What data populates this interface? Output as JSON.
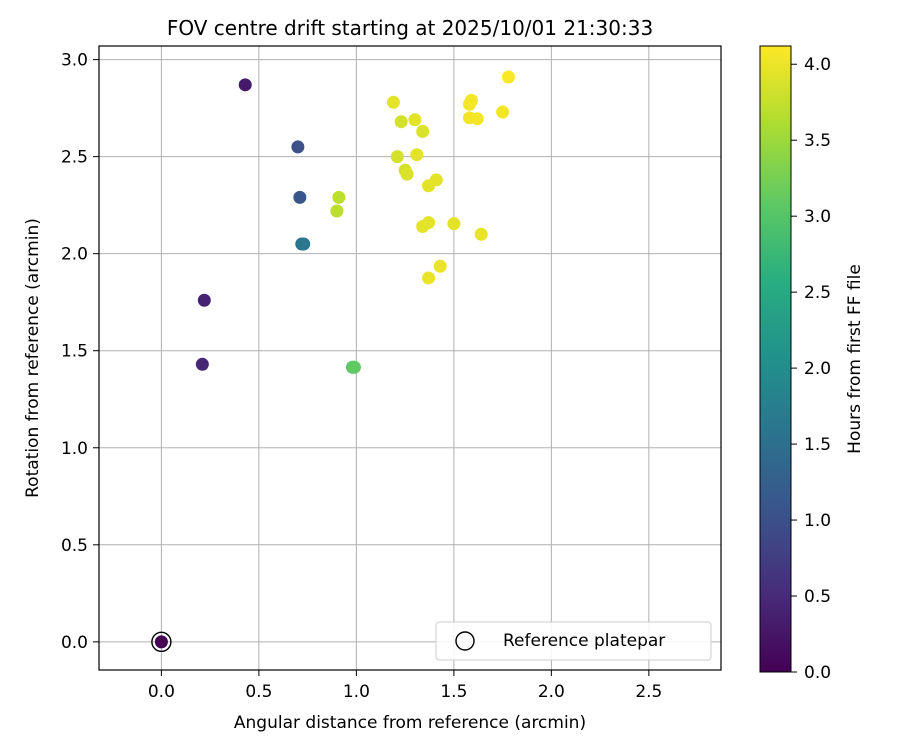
{
  "chart_data": {
    "type": "scatter",
    "title": "FOV centre drift starting at 2025/10/01 21:30:33",
    "xlabel": "Angular distance from reference (arcmin)",
    "ylabel": "Rotation from reference (arcmin)",
    "xlim": [
      -0.32,
      2.87
    ],
    "ylim": [
      -0.145,
      3.07
    ],
    "xticks": [
      0.0,
      0.5,
      1.0,
      1.5,
      2.0,
      2.5
    ],
    "xtick_labels": [
      "0.0",
      "0.5",
      "1.0",
      "1.5",
      "2.0",
      "2.5"
    ],
    "yticks": [
      0.0,
      0.5,
      1.0,
      1.5,
      2.0,
      2.5,
      3.0
    ],
    "ytick_labels": [
      "0.0",
      "0.5",
      "1.0",
      "1.5",
      "2.0",
      "2.5",
      "3.0"
    ],
    "grid": true,
    "colormap": "viridis",
    "colorbar": {
      "label": "Hours from first FF file",
      "range": [
        0.0,
        4.12
      ],
      "ticks": [
        0.0,
        0.5,
        1.0,
        1.5,
        2.0,
        2.5,
        3.0,
        3.5,
        4.0
      ],
      "tick_labels": [
        "0.0",
        "0.5",
        "1.0",
        "1.5",
        "2.0",
        "2.5",
        "3.0",
        "3.5",
        "4.0"
      ]
    },
    "reference": {
      "x": 0.0,
      "y": 0.0,
      "hours": 0.0
    },
    "legend": {
      "label": "Reference platepar",
      "position": "lower-right"
    },
    "points": [
      {
        "x": 0.0,
        "y": 0.0,
        "hours": 0.0
      },
      {
        "x": 0.43,
        "y": 2.87,
        "hours": 0.3
      },
      {
        "x": 0.22,
        "y": 1.76,
        "hours": 0.4
      },
      {
        "x": 0.21,
        "y": 1.43,
        "hours": 0.45
      },
      {
        "x": 0.7,
        "y": 2.55,
        "hours": 1.0
      },
      {
        "x": 0.71,
        "y": 2.29,
        "hours": 1.1
      },
      {
        "x": 0.72,
        "y": 2.05,
        "hours": 1.6
      },
      {
        "x": 0.73,
        "y": 2.05,
        "hours": 1.62
      },
      {
        "x": 0.98,
        "y": 1.415,
        "hours": 3.05
      },
      {
        "x": 0.99,
        "y": 1.415,
        "hours": 3.1
      },
      {
        "x": 0.91,
        "y": 2.29,
        "hours": 3.7
      },
      {
        "x": 0.9,
        "y": 2.22,
        "hours": 3.7
      },
      {
        "x": 1.19,
        "y": 2.78,
        "hours": 3.95
      },
      {
        "x": 1.23,
        "y": 2.68,
        "hours": 3.85
      },
      {
        "x": 1.3,
        "y": 2.69,
        "hours": 3.95
      },
      {
        "x": 1.34,
        "y": 2.63,
        "hours": 3.9
      },
      {
        "x": 1.21,
        "y": 2.5,
        "hours": 3.85
      },
      {
        "x": 1.31,
        "y": 2.51,
        "hours": 3.95
      },
      {
        "x": 1.25,
        "y": 2.43,
        "hours": 3.85
      },
      {
        "x": 1.26,
        "y": 2.41,
        "hours": 3.9
      },
      {
        "x": 1.37,
        "y": 2.35,
        "hours": 3.95
      },
      {
        "x": 1.41,
        "y": 2.38,
        "hours": 3.95
      },
      {
        "x": 1.37,
        "y": 2.16,
        "hours": 3.95
      },
      {
        "x": 1.34,
        "y": 2.14,
        "hours": 3.95
      },
      {
        "x": 1.5,
        "y": 2.155,
        "hours": 3.95
      },
      {
        "x": 1.64,
        "y": 2.1,
        "hours": 4.0
      },
      {
        "x": 1.43,
        "y": 1.935,
        "hours": 4.0
      },
      {
        "x": 1.37,
        "y": 1.875,
        "hours": 4.0
      },
      {
        "x": 1.58,
        "y": 2.77,
        "hours": 4.05
      },
      {
        "x": 1.59,
        "y": 2.79,
        "hours": 4.05
      },
      {
        "x": 1.58,
        "y": 2.7,
        "hours": 4.05
      },
      {
        "x": 1.62,
        "y": 2.695,
        "hours": 4.05
      },
      {
        "x": 1.75,
        "y": 2.73,
        "hours": 4.05
      },
      {
        "x": 1.78,
        "y": 2.91,
        "hours": 4.1
      }
    ]
  }
}
